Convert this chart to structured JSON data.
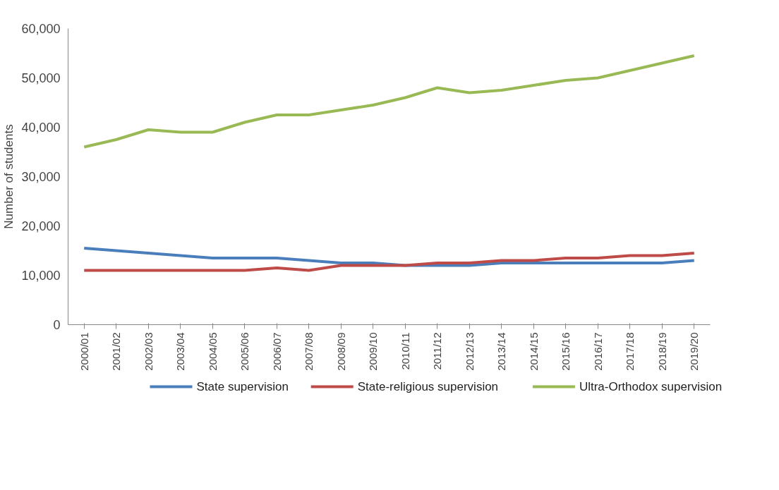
{
  "chart_data": {
    "type": "line",
    "ylabel": "Number of students",
    "categories": [
      "2000/01",
      "2001/02",
      "2002/03",
      "2003/04",
      "2004/05",
      "2005/06",
      "2006/07",
      "2007/08",
      "2008/09",
      "2009/10",
      "2010/11",
      "2011/12",
      "2012/13",
      "2013/14",
      "2014/15",
      "2015/16",
      "2016/17",
      "2017/18",
      "2018/19",
      "2019/20"
    ],
    "series": [
      {
        "name": "State supervision",
        "color": "#4a7ebb",
        "values": [
          15500,
          15000,
          14500,
          14000,
          13500,
          13500,
          13500,
          13000,
          12500,
          12500,
          12000,
          12000,
          12000,
          12500,
          12500,
          12500,
          12500,
          12500,
          12500,
          13000
        ]
      },
      {
        "name": "State-religious supervision",
        "color": "#be4b48",
        "values": [
          11000,
          11000,
          11000,
          11000,
          11000,
          11000,
          11500,
          11000,
          12000,
          12000,
          12000,
          12500,
          12500,
          13000,
          13000,
          13500,
          13500,
          14000,
          14000,
          14500
        ]
      },
      {
        "name": "Ultra-Orthodox supervision",
        "color": "#98b954",
        "values": [
          36000,
          37500,
          39500,
          39000,
          39000,
          41000,
          42500,
          42500,
          43500,
          44500,
          46000,
          48000,
          47000,
          47500,
          48500,
          49500,
          50000,
          51500,
          53000,
          54500
        ]
      }
    ],
    "ylim": [
      0,
      60000
    ],
    "yticks": [
      {
        "value": 0,
        "label": "0"
      },
      {
        "value": 10000,
        "label": "10,000"
      },
      {
        "value": 20000,
        "label": "20,000"
      },
      {
        "value": 30000,
        "label": "30,000"
      },
      {
        "value": 40000,
        "label": "40,000"
      },
      {
        "value": 50000,
        "label": "50,000"
      },
      {
        "value": 60000,
        "label": "60,000"
      }
    ],
    "grid": false,
    "legend": "bottom",
    "marker": "none",
    "line_style": "solid"
  }
}
